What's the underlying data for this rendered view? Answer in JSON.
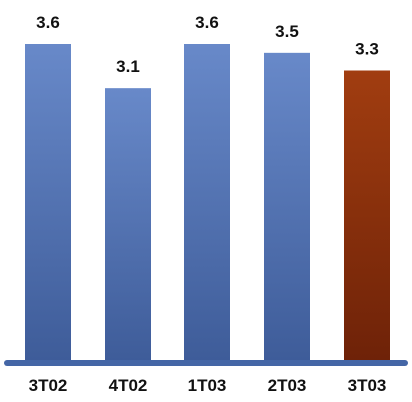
{
  "chart_data": {
    "type": "bar",
    "categories": [
      "3T02",
      "4T02",
      "1T03",
      "2T03",
      "3T03"
    ],
    "values": [
      3.6,
      3.1,
      3.6,
      3.5,
      3.3
    ],
    "value_labels": [
      "3.6",
      "3.1",
      "3.6",
      "3.5",
      "3.3"
    ],
    "title": "",
    "xlabel": "",
    "ylabel": "",
    "ylim": [
      0,
      3.6
    ],
    "grid": false,
    "legend": "none",
    "colors": {
      "bar_default_top": "#6889c9",
      "bar_default_bottom": "#3e5c99",
      "bar_highlight_top": "#a13d10",
      "bar_highlight_bottom": "#6e2208",
      "axis": "#4466a6"
    },
    "highlight_index": 4
  }
}
